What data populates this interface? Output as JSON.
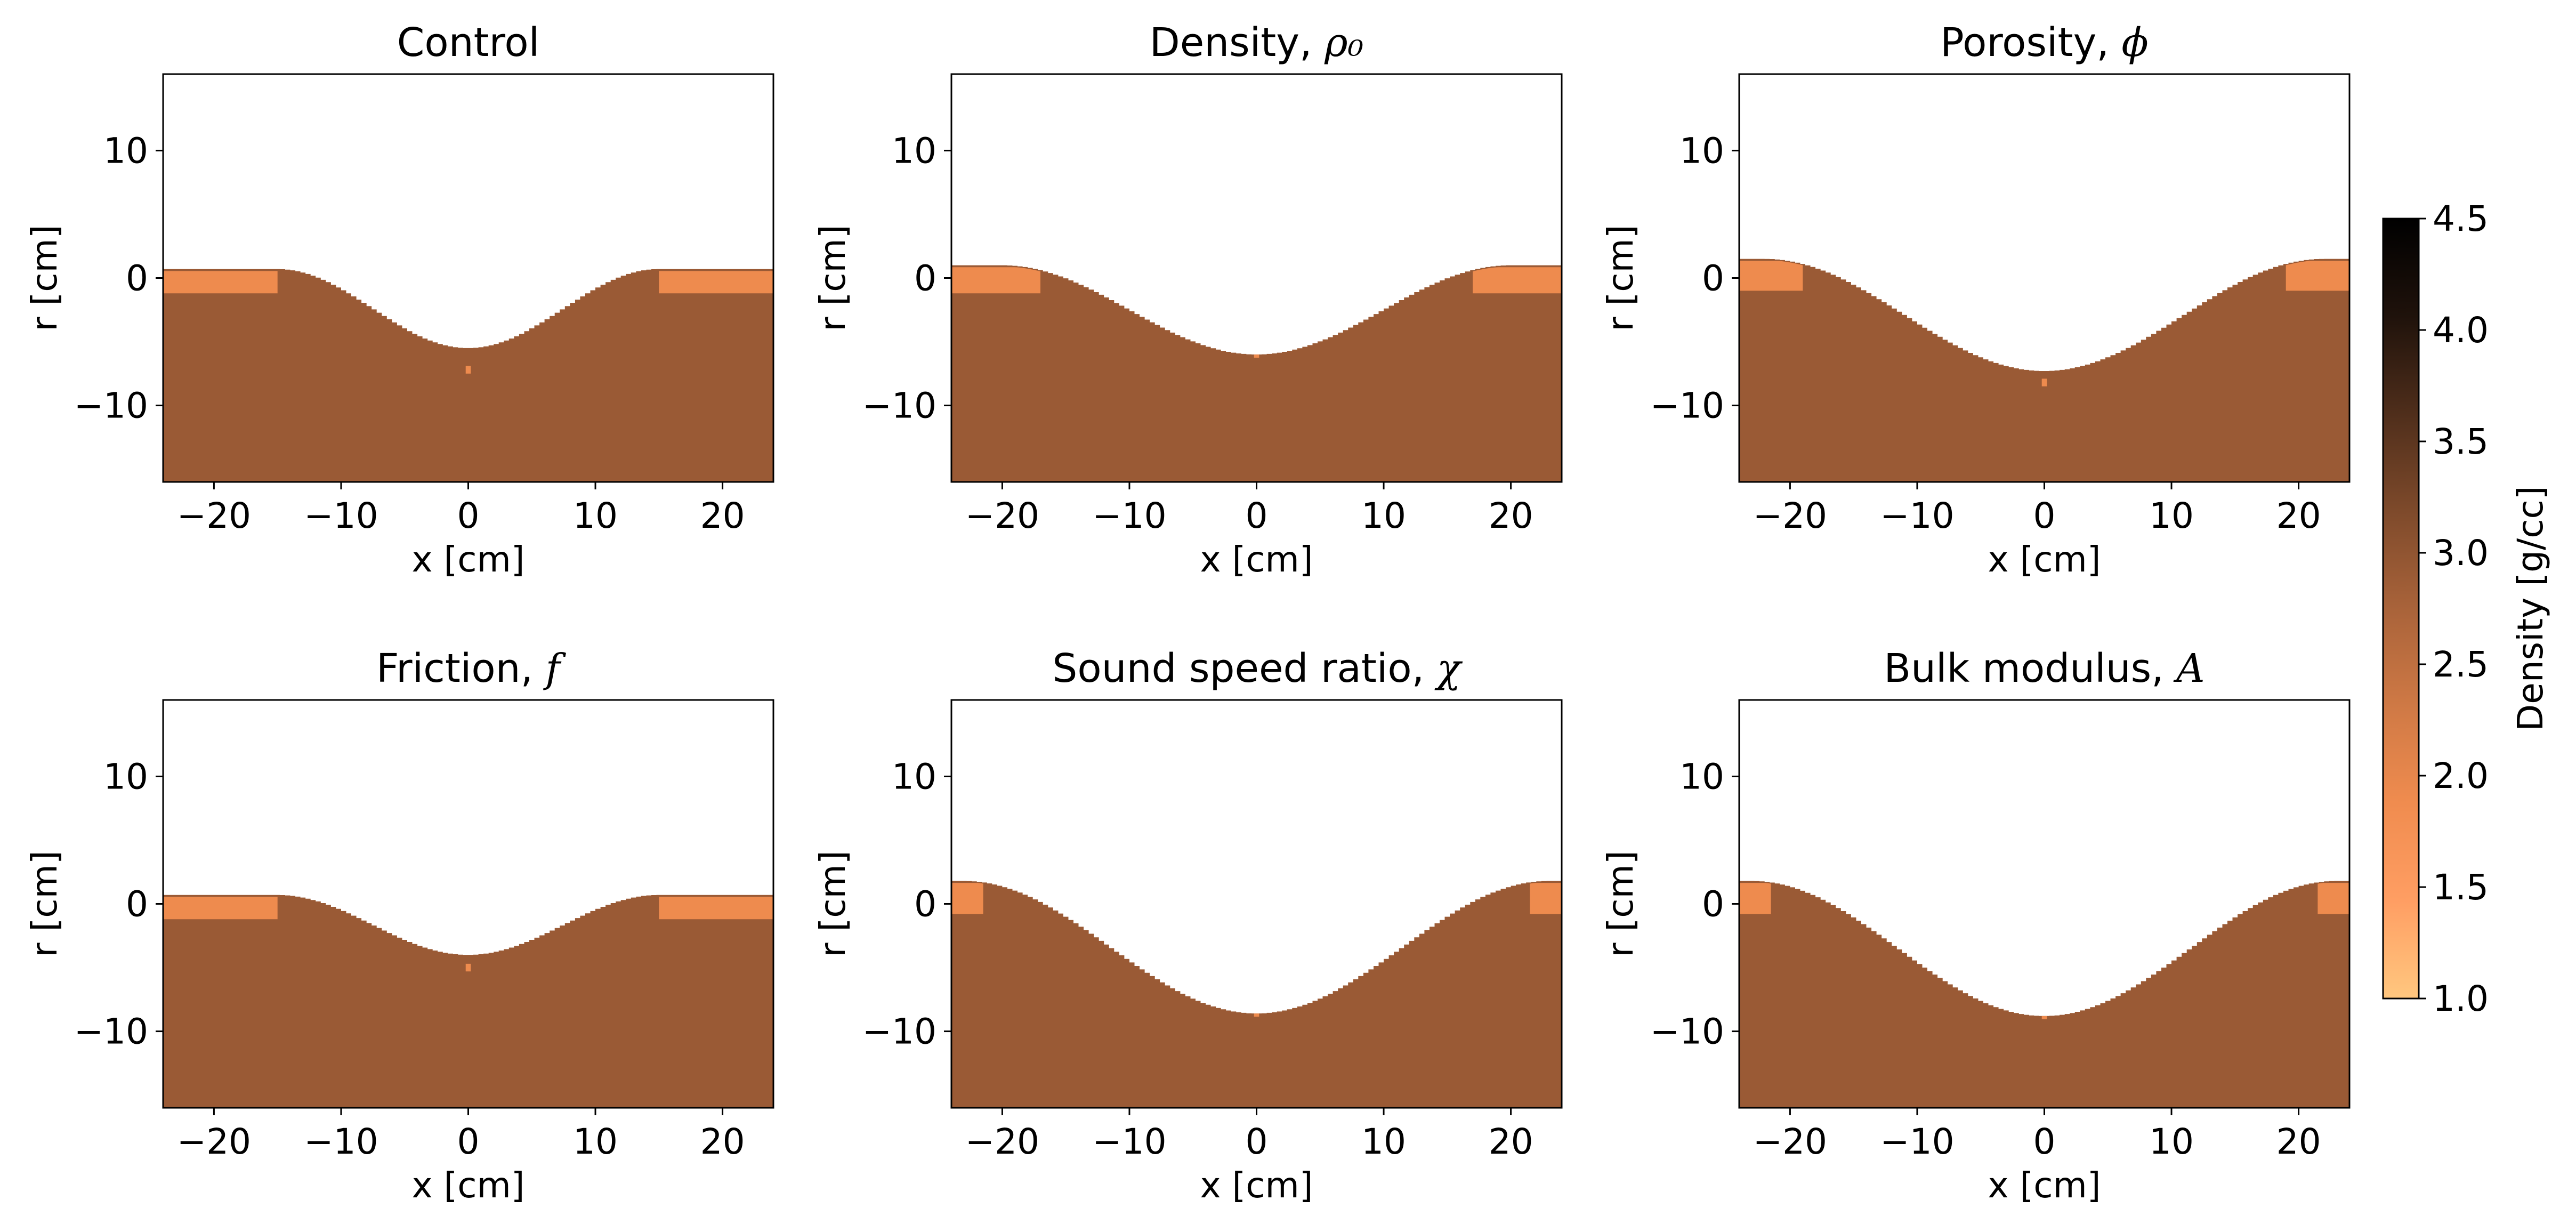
{
  "figure": {
    "colorbar": {
      "label": "Density [g/cc]",
      "range": [
        1.0,
        4.5
      ],
      "ticks": [
        "1.0",
        "1.5",
        "2.0",
        "2.5",
        "3.0",
        "3.5",
        "4.0",
        "4.5"
      ],
      "colormap": "copper_r",
      "stops": [
        "#ffc77f",
        "#ff9e63",
        "#f08c4f",
        "#cf7945",
        "#a9633a",
        "#7e4a2b",
        "#4f2e1b",
        "#1f120b",
        "#000000"
      ]
    }
  },
  "chart_data": [
    {
      "type": "heatmap",
      "title": "Control",
      "title_math": "",
      "xlabel": "x [cm]",
      "ylabel": "r [cm]",
      "xlim": [
        -24,
        24
      ],
      "ylim": [
        -16,
        16
      ],
      "xticks": [
        -20,
        -10,
        0,
        10,
        20
      ],
      "yticks": [
        -10,
        0,
        10
      ],
      "target_density": 2.9,
      "ejecta_density": 1.9,
      "surface_level": 0.7,
      "crater_depth": -5.5,
      "crater_radius": 15,
      "ejecta_layer_bottom": -1.2,
      "ejecta_inner_extent": 15,
      "central_feature_depth": -7.5
    },
    {
      "type": "heatmap",
      "title": "Density, ",
      "title_math": "ρ₀",
      "xlabel": "x [cm]",
      "ylabel": "r [cm]",
      "xlim": [
        -24,
        24
      ],
      "ylim": [
        -16,
        16
      ],
      "xticks": [
        -20,
        -10,
        0,
        10,
        20
      ],
      "yticks": [
        -10,
        0,
        10
      ],
      "target_density": 2.9,
      "ejecta_density": 1.9,
      "surface_level": 1.0,
      "crater_depth": -6.0,
      "crater_radius": 20,
      "ejecta_layer_bottom": -1.2,
      "ejecta_inner_extent": 17,
      "central_feature_depth": -6.0
    },
    {
      "type": "heatmap",
      "title": "Porosity, ",
      "title_math": "ϕ",
      "xlabel": "x [cm]",
      "ylabel": "r [cm]",
      "xlim": [
        -24,
        24
      ],
      "ylim": [
        -16,
        16
      ],
      "xticks": [
        -20,
        -10,
        0,
        10,
        20
      ],
      "yticks": [
        -10,
        0,
        10
      ],
      "target_density": 2.9,
      "ejecta_density": 1.9,
      "surface_level": 1.5,
      "crater_depth": -7.3,
      "crater_radius": 22,
      "ejecta_layer_bottom": -1.0,
      "ejecta_inner_extent": 19,
      "central_feature_depth": -8.5
    },
    {
      "type": "heatmap",
      "title": "Friction, ",
      "title_math": "f",
      "xlabel": "x [cm]",
      "ylabel": "r [cm]",
      "xlim": [
        -24,
        24
      ],
      "ylim": [
        -16,
        16
      ],
      "xticks": [
        -20,
        -10,
        0,
        10,
        20
      ],
      "yticks": [
        -10,
        0,
        10
      ],
      "target_density": 2.9,
      "ejecta_density": 1.9,
      "surface_level": 0.7,
      "crater_depth": -4.0,
      "crater_radius": 15,
      "ejecta_layer_bottom": -1.2,
      "ejecta_inner_extent": 15,
      "central_feature_depth": -5.3
    },
    {
      "type": "heatmap",
      "title": "Sound speed ratio, ",
      "title_math": "χ",
      "xlabel": "x [cm]",
      "ylabel": "r [cm]",
      "xlim": [
        -24,
        24
      ],
      "ylim": [
        -16,
        16
      ],
      "xticks": [
        -20,
        -10,
        0,
        10,
        20
      ],
      "yticks": [
        -10,
        0,
        10
      ],
      "target_density": 2.9,
      "ejecta_density": 1.9,
      "surface_level": 1.8,
      "crater_depth": -8.6,
      "crater_radius": 23,
      "ejecta_layer_bottom": -0.8,
      "ejecta_inner_extent": 21.5,
      "central_feature_depth": -8.6
    },
    {
      "type": "heatmap",
      "title": "Bulk modulus, ",
      "title_math": "A",
      "xlabel": "x [cm]",
      "ylabel": "r [cm]",
      "xlim": [
        -24,
        24
      ],
      "ylim": [
        -16,
        16
      ],
      "xticks": [
        -20,
        -10,
        0,
        10,
        20
      ],
      "yticks": [
        -10,
        0,
        10
      ],
      "target_density": 2.9,
      "ejecta_density": 1.9,
      "surface_level": 1.8,
      "crater_depth": -8.8,
      "crater_radius": 23,
      "ejecta_layer_bottom": -0.8,
      "ejecta_inner_extent": 21.5,
      "central_feature_depth": -9.0
    }
  ]
}
